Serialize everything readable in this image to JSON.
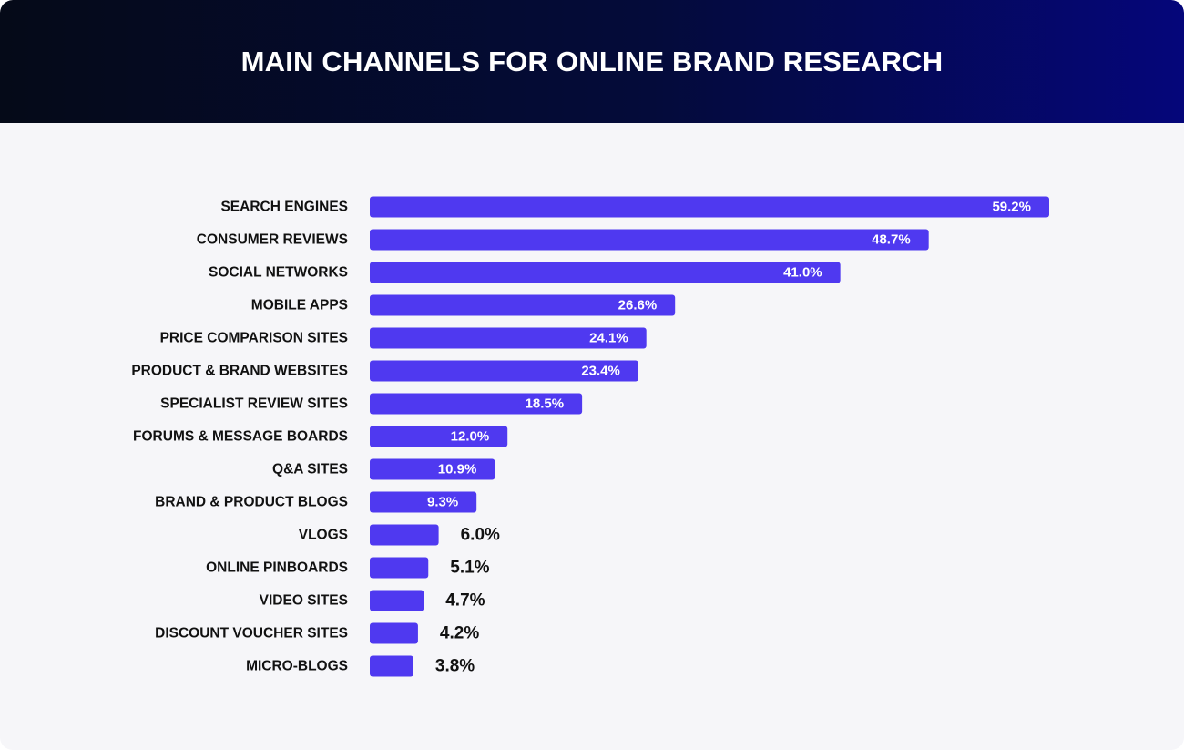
{
  "title": "MAIN CHANNELS FOR ONLINE BRAND RESEARCH",
  "colors": {
    "bar": "#4f39f0",
    "header_start": "#050a18",
    "header_end": "#05067a",
    "background": "#f6f6f9"
  },
  "chart_data": {
    "type": "bar",
    "orientation": "horizontal",
    "title": "MAIN CHANNELS FOR ONLINE BRAND RESEARCH",
    "xlabel": "",
    "ylabel": "",
    "xlim": [
      0,
      59.2
    ],
    "grid": false,
    "categories": [
      "SEARCH ENGINES",
      "CONSUMER REVIEWS",
      "SOCIAL NETWORKS",
      "MOBILE APPS",
      "PRICE COMPARISON SITES",
      "PRODUCT & BRAND WEBSITES",
      "SPECIALIST REVIEW SITES",
      "FORUMS & MESSAGE BOARDS",
      "Q&A SITES",
      "BRAND & PRODUCT BLOGS",
      "VLOGS",
      "ONLINE PINBOARDS",
      "VIDEO SITES",
      "DISCOUNT VOUCHER SITES",
      "MICRO-BLOGS"
    ],
    "values": [
      59.2,
      48.7,
      41.0,
      26.6,
      24.1,
      23.4,
      18.5,
      12.0,
      10.9,
      9.3,
      6.0,
      5.1,
      4.7,
      4.2,
      3.8
    ],
    "value_labels": [
      "59.2%",
      "48.7%",
      "41.0%",
      "26.6%",
      "24.1%",
      "23.4%",
      "18.5%",
      "12.0%",
      "10.9%",
      "9.3%",
      "6.0%",
      "5.1%",
      "4.7%",
      "4.2%",
      "3.8%"
    ]
  }
}
